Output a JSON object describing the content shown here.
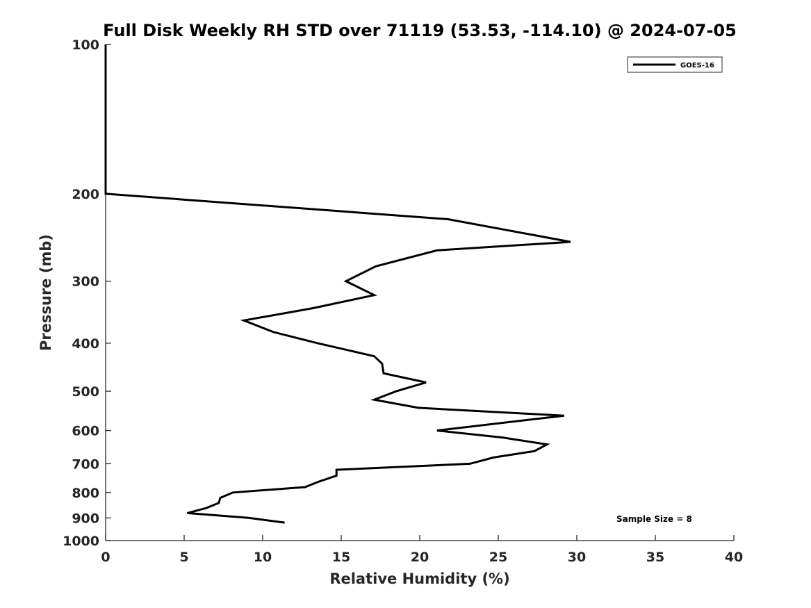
{
  "chart_data": {
    "type": "line",
    "title": "Full Disk Weekly RH STD over 71119 (53.53, -114.10) @ 2024-07-05",
    "xlabel": "Relative Humidity (%)",
    "ylabel": "Pressure (mb)",
    "xlim": [
      0,
      40
    ],
    "ylim": [
      1000,
      100
    ],
    "y_scale": "log",
    "x_ticks": [
      0,
      5,
      10,
      15,
      20,
      25,
      30,
      35,
      40
    ],
    "y_ticks": [
      100,
      200,
      300,
      400,
      500,
      600,
      700,
      800,
      900,
      1000
    ],
    "grid": false,
    "legend_position": "top-right",
    "annotation": "Sample Size = 8",
    "series": [
      {
        "name": "GOES-16",
        "color": "#000000",
        "points": [
          {
            "x": 0,
            "y": 100
          },
          {
            "x": 0,
            "y": 125
          },
          {
            "x": 0,
            "y": 150
          },
          {
            "x": 0,
            "y": 175
          },
          {
            "x": 0,
            "y": 200
          },
          {
            "x": 21.8,
            "y": 225
          },
          {
            "x": 29.6,
            "y": 250
          },
          {
            "x": 21.1,
            "y": 260
          },
          {
            "x": 17.2,
            "y": 280
          },
          {
            "x": 15.3,
            "y": 300
          },
          {
            "x": 17.1,
            "y": 320
          },
          {
            "x": 13.2,
            "y": 340
          },
          {
            "x": 8.8,
            "y": 360
          },
          {
            "x": 10.7,
            "y": 380
          },
          {
            "x": 13.5,
            "y": 400
          },
          {
            "x": 17.1,
            "y": 425
          },
          {
            "x": 17.6,
            "y": 440
          },
          {
            "x": 17.7,
            "y": 460
          },
          {
            "x": 20.4,
            "y": 480
          },
          {
            "x": 18.5,
            "y": 500
          },
          {
            "x": 17.1,
            "y": 520
          },
          {
            "x": 19.9,
            "y": 540
          },
          {
            "x": 29.2,
            "y": 560
          },
          {
            "x": 21.1,
            "y": 600
          },
          {
            "x": 25.3,
            "y": 620
          },
          {
            "x": 28.1,
            "y": 640
          },
          {
            "x": 27.3,
            "y": 660
          },
          {
            "x": 24.7,
            "y": 680
          },
          {
            "x": 23.2,
            "y": 700
          },
          {
            "x": 14.7,
            "y": 720
          },
          {
            "x": 14.7,
            "y": 740
          },
          {
            "x": 13.6,
            "y": 760
          },
          {
            "x": 12.7,
            "y": 780
          },
          {
            "x": 8.1,
            "y": 800
          },
          {
            "x": 7.3,
            "y": 820
          },
          {
            "x": 7.2,
            "y": 840
          },
          {
            "x": 6.4,
            "y": 860
          },
          {
            "x": 5.2,
            "y": 880
          },
          {
            "x": 9.1,
            "y": 900
          },
          {
            "x": 11.4,
            "y": 920
          }
        ]
      }
    ]
  }
}
